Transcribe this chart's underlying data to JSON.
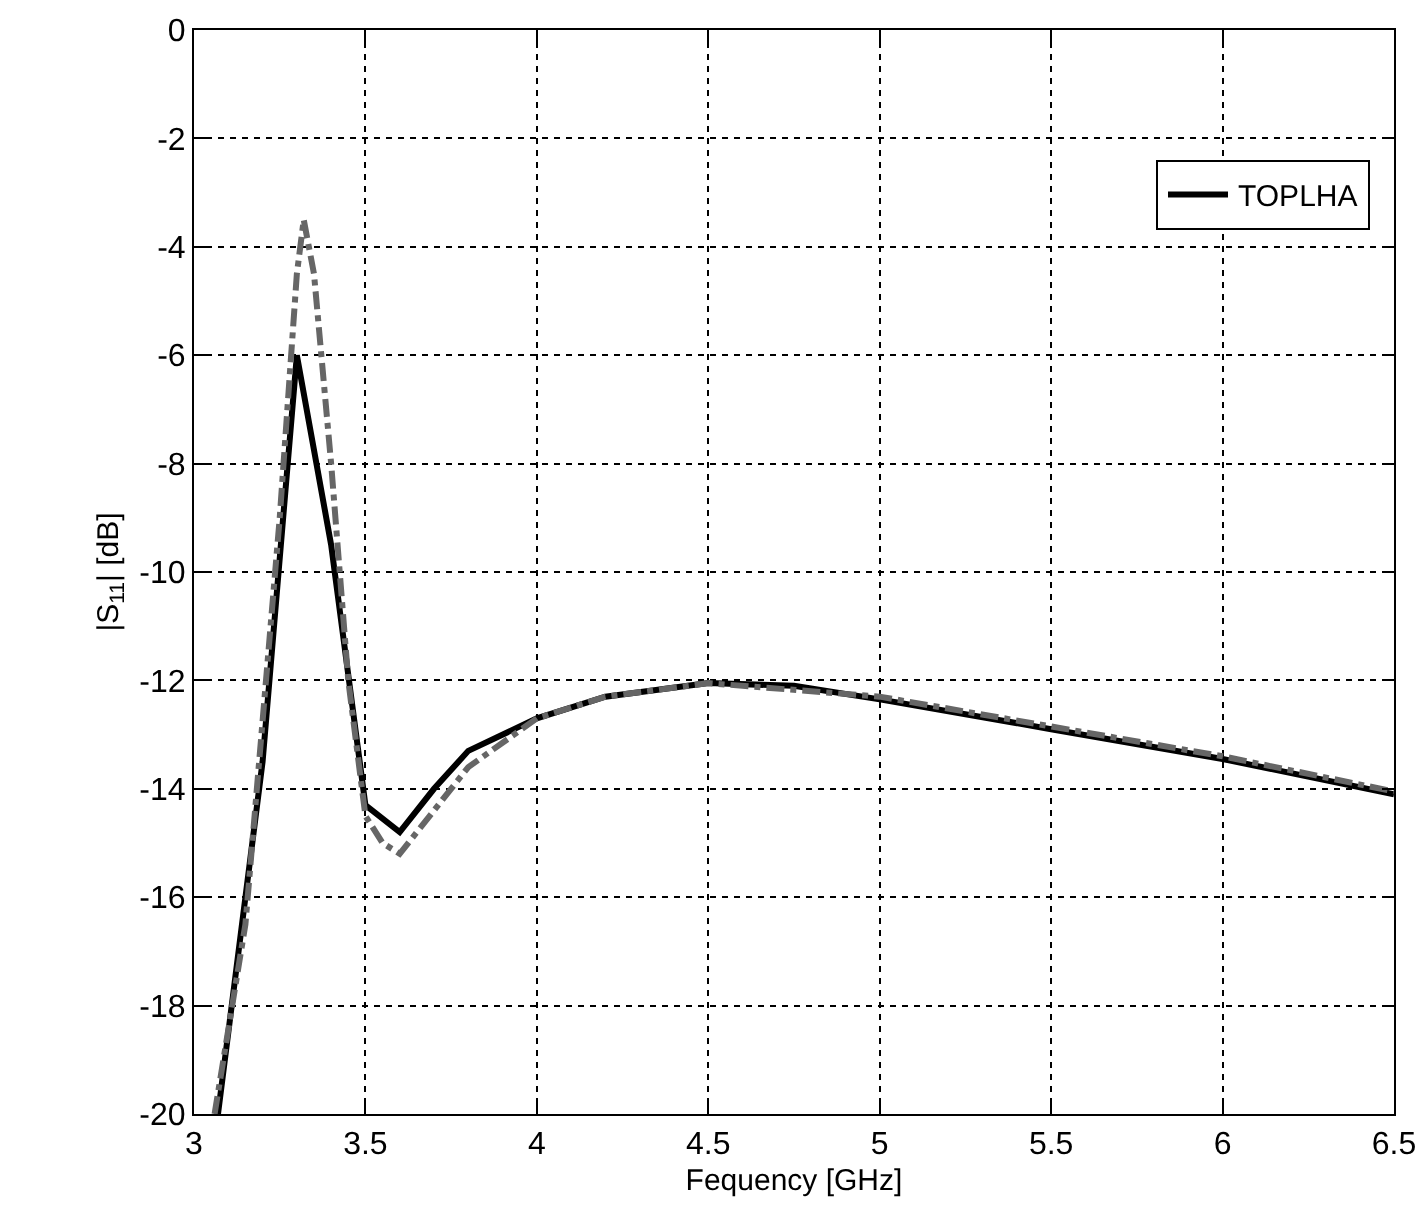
{
  "chart_data": {
    "type": "line",
    "xlabel": "Fequency [GHz]",
    "ylabel": "|S$_{11}$| [dB]",
    "xlim": [
      3,
      6.5
    ],
    "ylim": [
      -20,
      0
    ],
    "xticks": [
      3,
      3.5,
      4,
      4.5,
      5,
      5.5,
      6,
      6.5
    ],
    "yticks": [
      -20,
      -18,
      -16,
      -14,
      -12,
      -10,
      -8,
      -6,
      -4,
      -2,
      0
    ],
    "grid": true,
    "legend": "top right",
    "marker": "none",
    "series": [
      {
        "name": "TOPLHA",
        "color": "#000000",
        "line_style": "solid",
        "x": [
          3.07,
          3.2,
          3.3,
          3.4,
          3.5,
          3.6,
          3.7,
          3.8,
          4,
          4.2,
          4.5,
          4.75,
          5,
          5.5,
          6,
          6.5
        ],
        "values": [
          -20,
          -13.5,
          -6,
          -9.5,
          -14.3,
          -14.8,
          -14,
          -13.3,
          -12.7,
          -12.3,
          -12.05,
          -12.1,
          -12.35,
          -12.9,
          -13.45,
          -14.1
        ]
      },
      {
        "color": "#666666",
        "line_style": "dashdot",
        "x": [
          3.06,
          3.15,
          3.25,
          3.3,
          3.32,
          3.35,
          3.4,
          3.45,
          3.5,
          3.55,
          3.6,
          3.7,
          3.8,
          4,
          4.2,
          4.5,
          5,
          5.5,
          6,
          6.5
        ],
        "values": [
          -20,
          -16.5,
          -9,
          -4.5,
          -3.5,
          -4.5,
          -8,
          -12,
          -14.5,
          -15,
          -15.2,
          -14.4,
          -13.6,
          -12.7,
          -12.3,
          -12.05,
          -12.3,
          -12.85,
          -13.4,
          -14.05
        ]
      }
    ]
  }
}
